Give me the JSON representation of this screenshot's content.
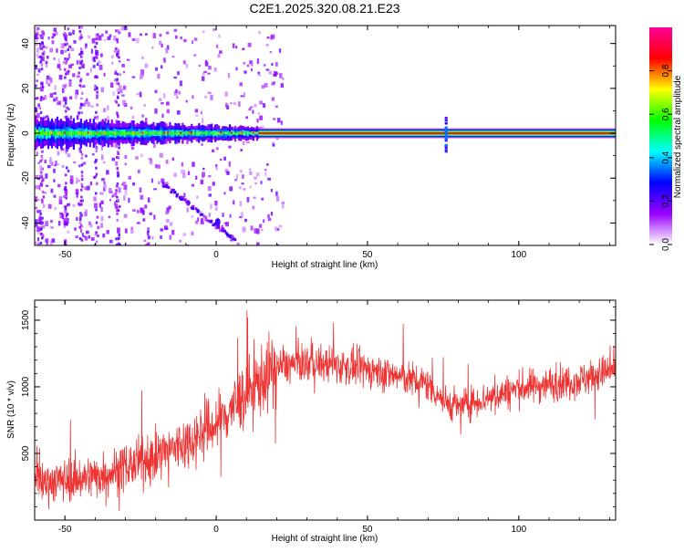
{
  "title": "C2E1.2025.320.08.21.E23",
  "chart_data": [
    {
      "type": "heatmap",
      "description_kind": "spectrogram",
      "xlabel": "Height of straight line (km)",
      "ylabel": "Frequency (Hz)",
      "xlim": [
        -60,
        132
      ],
      "ylim": [
        -50,
        48
      ],
      "x_ticks": [
        -50,
        0,
        50,
        100
      ],
      "y_ticks": [
        -40,
        -20,
        0,
        20,
        40
      ],
      "colorbar": {
        "label": "Normalized spectral amplitude",
        "range": [
          0,
          1
        ],
        "ticks": [
          0.0,
          0.2,
          0.4,
          0.6,
          0.8
        ],
        "tick_labels": [
          "0.0",
          "0.2",
          "0.4",
          "0.6",
          "0.8"
        ],
        "colors": [
          "#ffffff",
          "#9900ff",
          "#0000ff",
          "#00ffff",
          "#00ff00",
          "#ffff00",
          "#ff0000",
          "#ff0099"
        ]
      },
      "features": [
        {
          "name": "noisy carrier",
          "x_range": [
            -60,
            14
          ],
          "frequency": 0,
          "amplitude": 0.45
        },
        {
          "name": "steady carrier",
          "x_range": [
            14,
            132
          ],
          "frequency": 0,
          "amplitude": 0.95
        },
        {
          "name": "drifting tone",
          "x_range": [
            -18,
            6
          ],
          "frequency_range": [
            -22,
            -47
          ],
          "amplitude": 0.25
        },
        {
          "name": "spike",
          "x": 76,
          "frequency_range": [
            -8,
            8
          ],
          "amplitude": 0.3
        }
      ]
    },
    {
      "type": "line",
      "xlabel": "Height of straight line (km)",
      "ylabel": "SNR (10 * v/v)",
      "xlim": [
        -60,
        132
      ],
      "ylim": [
        0,
        1650
      ],
      "x_ticks": [
        -50,
        0,
        50,
        100
      ],
      "y_ticks": [
        500,
        1000,
        1500
      ],
      "color": "#ee3333",
      "series": [
        {
          "x": [
            -60,
            -50,
            -40,
            -30,
            -20,
            -10,
            0,
            10,
            20,
            30,
            40,
            50,
            60,
            70,
            76,
            80,
            90,
            100,
            110,
            120,
            132
          ],
          "y": [
            280,
            300,
            330,
            390,
            480,
            580,
            720,
            950,
            1150,
            1180,
            1160,
            1130,
            1080,
            1020,
            880,
            850,
            920,
            990,
            1020,
            1050,
            1130
          ]
        }
      ]
    }
  ]
}
